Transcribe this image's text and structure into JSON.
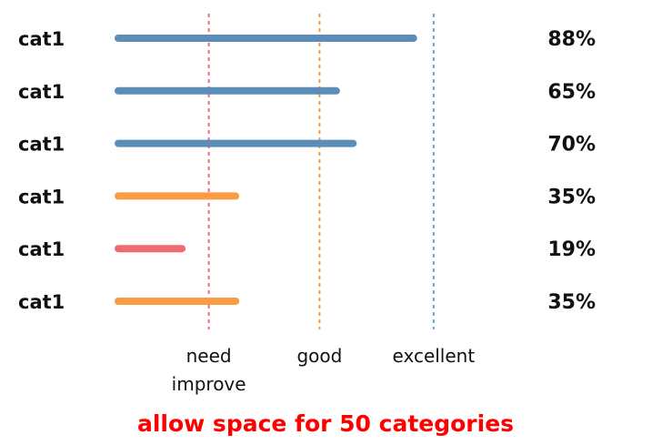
{
  "chart_data": {
    "type": "bar",
    "orientation": "horizontal",
    "categories": [
      "cat1",
      "cat1",
      "cat1",
      "cat1",
      "cat1",
      "cat1"
    ],
    "values": [
      88,
      65,
      70,
      35,
      19,
      35
    ],
    "value_labels": [
      "88%",
      "65%",
      "70%",
      "35%",
      "19%",
      "35%"
    ],
    "bar_colors": [
      "#5b8db8",
      "#5b8db8",
      "#5b8db8",
      "#f99c43",
      "#ef6b6f",
      "#f99c43"
    ],
    "xlim": [
      0,
      100
    ],
    "thresholds": [
      {
        "value": 27,
        "label_lines": [
          "need",
          "improve"
        ],
        "color": "#ef6b6f"
      },
      {
        "value": 60,
        "label_lines": [
          "good"
        ],
        "color": "#f59a3a"
      },
      {
        "value": 94,
        "label_lines": [
          "excellent"
        ],
        "color": "#5fa8d3"
      }
    ],
    "note": "allow space for 50 categories",
    "note_color": "#ff0000"
  }
}
